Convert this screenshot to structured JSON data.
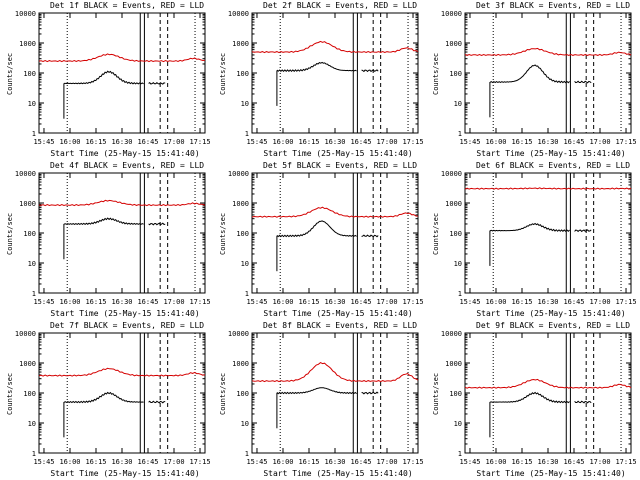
{
  "colors": {
    "black_series": "#000000",
    "red_series": "#d40000",
    "axes": "#000000"
  },
  "chart_data": [
    {
      "type": "line",
      "title": "Det 1f BLACK = Events, RED = LLD",
      "xlabel": "Start Time (25-May-15 15:41:40)",
      "ylabel": "Counts/sec",
      "x_ticks": [
        "15:45",
        "16:00",
        "16:15",
        "16:30",
        "16:45",
        "17:00",
        "17:15"
      ],
      "y_ticks": [
        "1",
        "10",
        "100",
        "1000",
        "10000"
      ],
      "y_scale": "log",
      "ylim": [
        1,
        10000
      ],
      "red_level": 250,
      "red_peak": 420,
      "black_level": 45,
      "black_peak": 110
    },
    {
      "type": "line",
      "title": "Det 2f BLACK = Events, RED = LLD",
      "xlabel": "Start Time (25-May-15 15:41:40)",
      "ylabel": "Counts/sec",
      "x_ticks": [
        "15:45",
        "16:00",
        "16:15",
        "16:30",
        "16:45",
        "17:00",
        "17:15"
      ],
      "y_ticks": [
        "1",
        "10",
        "100",
        "1000",
        "10000"
      ],
      "y_scale": "log",
      "ylim": [
        1,
        10000
      ],
      "red_level": 500,
      "red_peak": 1100,
      "black_level": 120,
      "black_peak": 220
    },
    {
      "type": "line",
      "title": "Det 3f BLACK = Events, RED = LLD",
      "xlabel": "Start Time (25-May-15 15:41:40)",
      "ylabel": "Counts/sec",
      "x_ticks": [
        "15:45",
        "16:00",
        "16:15",
        "16:30",
        "16:45",
        "17:00",
        "17:15"
      ],
      "y_ticks": [
        "1",
        "10",
        "100",
        "1000",
        "10000"
      ],
      "y_scale": "log",
      "ylim": [
        1,
        10000
      ],
      "red_level": 400,
      "red_peak": 650,
      "black_level": 50,
      "black_peak": 180
    },
    {
      "type": "line",
      "title": "Det 4f BLACK = Events, RED = LLD",
      "xlabel": "Start Time (25-May-15 15:41:40)",
      "ylabel": "Counts/sec",
      "x_ticks": [
        "15:45",
        "16:00",
        "16:15",
        "16:30",
        "16:45",
        "17:00",
        "17:15"
      ],
      "y_ticks": [
        "1",
        "10",
        "100",
        "1000",
        "10000"
      ],
      "y_scale": "log",
      "ylim": [
        1,
        10000
      ],
      "red_level": 850,
      "red_peak": 1200,
      "black_level": 200,
      "black_peak": 300
    },
    {
      "type": "line",
      "title": "Det 5f BLACK = Events, RED = LLD",
      "xlabel": "Start Time (25-May-15 15:41:40)",
      "ylabel": "Counts/sec",
      "x_ticks": [
        "15:45",
        "16:00",
        "16:15",
        "16:30",
        "16:45",
        "17:00",
        "17:15"
      ],
      "y_ticks": [
        "1",
        "10",
        "100",
        "1000",
        "10000"
      ],
      "y_scale": "log",
      "ylim": [
        1,
        10000
      ],
      "red_level": 350,
      "red_peak": 700,
      "black_level": 80,
      "black_peak": 250
    },
    {
      "type": "line",
      "title": "Det 6f BLACK = Events, RED = LLD",
      "xlabel": "Start Time (25-May-15 15:41:40)",
      "ylabel": "Counts/sec",
      "x_ticks": [
        "15:45",
        "16:00",
        "16:15",
        "16:30",
        "16:45",
        "17:00",
        "17:15"
      ],
      "y_ticks": [
        "1",
        "10",
        "100",
        "1000",
        "10000"
      ],
      "y_scale": "log",
      "ylim": [
        1,
        10000
      ],
      "red_level": 3000,
      "red_peak": 3100,
      "black_level": 120,
      "black_peak": 200
    },
    {
      "type": "line",
      "title": "Det 7f BLACK = Events, RED = LLD",
      "xlabel": "Start Time (25-May-15 15:41:40)",
      "ylabel": "Counts/sec",
      "x_ticks": [
        "15:45",
        "16:00",
        "16:15",
        "16:30",
        "16:45",
        "17:00",
        "17:15"
      ],
      "y_ticks": [
        "1",
        "10",
        "100",
        "1000",
        "10000"
      ],
      "y_scale": "log",
      "ylim": [
        1,
        10000
      ],
      "red_level": 380,
      "red_peak": 650,
      "black_level": 50,
      "black_peak": 100
    },
    {
      "type": "line",
      "title": "Det 8f BLACK = Events, RED = LLD",
      "xlabel": "Start Time (25-May-15 15:41:40)",
      "ylabel": "Counts/sec",
      "x_ticks": [
        "15:45",
        "16:00",
        "16:15",
        "16:30",
        "16:45",
        "17:00",
        "17:15"
      ],
      "y_ticks": [
        "1",
        "10",
        "100",
        "1000",
        "10000"
      ],
      "y_scale": "log",
      "ylim": [
        1,
        10000
      ],
      "red_level": 250,
      "red_peak": 1000,
      "black_level": 100,
      "black_peak": 150
    },
    {
      "type": "line",
      "title": "Det 9f BLACK = Events, RED = LLD",
      "xlabel": "Start Time (25-May-15 15:41:40)",
      "ylabel": "Counts/sec",
      "x_ticks": [
        "15:45",
        "16:00",
        "16:15",
        "16:30",
        "16:45",
        "17:00",
        "17:15"
      ],
      "y_ticks": [
        "1",
        "10",
        "100",
        "1000",
        "10000"
      ],
      "y_scale": "log",
      "ylim": [
        1,
        10000
      ],
      "red_level": 150,
      "red_peak": 280,
      "black_level": 50,
      "black_peak": 100
    }
  ]
}
